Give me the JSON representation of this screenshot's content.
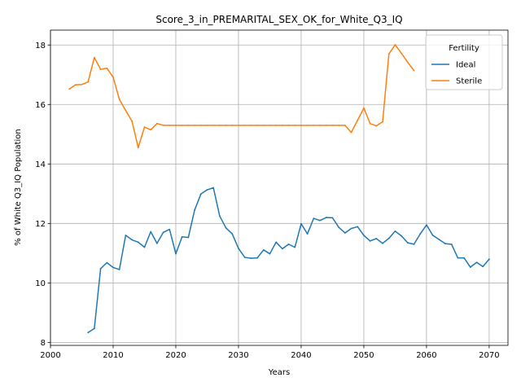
{
  "chart_data": {
    "type": "line",
    "title": "Score_3_in_PREMARITAL_SEX_OK_for_White_Q3_IQ",
    "xlabel": "Years",
    "ylabel": "% of White Q3_IQ Population",
    "xlim": [
      2000,
      2073
    ],
    "ylim": [
      7.9,
      18.5
    ],
    "xticks": [
      2000,
      2010,
      2020,
      2030,
      2040,
      2050,
      2060,
      2070
    ],
    "yticks": [
      8,
      10,
      12,
      14,
      16,
      18
    ],
    "grid": true,
    "legend": {
      "title": "Fertility",
      "position": "top-right"
    },
    "series": [
      {
        "name": "Ideal",
        "color": "#1f77b4",
        "x": [
          2006,
          2007,
          2008,
          2009,
          2010,
          2011,
          2012,
          2013,
          2014,
          2015,
          2016,
          2017,
          2018,
          2019,
          2020,
          2021,
          2022,
          2023,
          2024,
          2025,
          2026,
          2027,
          2028,
          2029,
          2030,
          2031,
          2032,
          2033,
          2034,
          2035,
          2036,
          2037,
          2038,
          2039,
          2040,
          2041,
          2042,
          2043,
          2044,
          2045,
          2046,
          2047,
          2048,
          2049,
          2050,
          2051,
          2052,
          2053,
          2054,
          2055,
          2056,
          2057,
          2058,
          2059,
          2060,
          2061,
          2062,
          2063,
          2064,
          2065,
          2066,
          2067,
          2068,
          2069,
          2070
        ],
        "values": [
          8.33,
          8.47,
          10.48,
          10.68,
          10.52,
          10.45,
          11.6,
          11.45,
          11.37,
          11.2,
          11.72,
          11.33,
          11.7,
          11.8,
          10.98,
          11.55,
          11.53,
          12.45,
          12.99,
          13.13,
          13.2,
          12.25,
          11.85,
          11.65,
          11.16,
          10.86,
          10.83,
          10.84,
          11.11,
          10.98,
          11.37,
          11.15,
          11.3,
          11.2,
          11.99,
          11.65,
          12.17,
          12.1,
          12.2,
          12.19,
          11.87,
          11.68,
          11.83,
          11.89,
          11.6,
          11.41,
          11.49,
          11.33,
          11.5,
          11.74,
          11.58,
          11.35,
          11.3,
          11.65,
          11.95,
          11.6,
          11.46,
          11.32,
          11.3,
          10.84,
          10.84,
          10.53,
          10.69,
          10.55,
          10.8
        ]
      },
      {
        "name": "Sterile",
        "color": "#ff7f0e",
        "x": [
          2003,
          2004,
          2005,
          2006,
          2007,
          2008,
          2009,
          2010,
          2011,
          2012,
          2013,
          2014,
          2015,
          2016,
          2017,
          2018,
          2019,
          2020,
          2021,
          2022,
          2023,
          2024,
          2025,
          2026,
          2027,
          2028,
          2029,
          2030,
          2031,
          2032,
          2033,
          2034,
          2035,
          2036,
          2037,
          2038,
          2039,
          2040,
          2041,
          2042,
          2043,
          2044,
          2045,
          2046,
          2047,
          2048,
          2049,
          2050,
          2051,
          2052,
          2053,
          2054,
          2055,
          2056,
          2057,
          2058
        ],
        "values": [
          16.52,
          16.66,
          16.67,
          16.76,
          17.58,
          17.18,
          17.22,
          16.92,
          16.17,
          15.8,
          15.44,
          14.55,
          15.24,
          15.15,
          15.36,
          15.3,
          15.3,
          15.3,
          15.3,
          15.3,
          15.3,
          15.3,
          15.3,
          15.3,
          15.3,
          15.3,
          15.3,
          15.3,
          15.3,
          15.3,
          15.3,
          15.3,
          15.3,
          15.3,
          15.3,
          15.3,
          15.3,
          15.3,
          15.3,
          15.3,
          15.3,
          15.3,
          15.3,
          15.3,
          15.3,
          15.06,
          15.47,
          15.88,
          15.36,
          15.28,
          15.42,
          17.7,
          18.01,
          17.72,
          17.42,
          17.14
        ]
      }
    ]
  }
}
